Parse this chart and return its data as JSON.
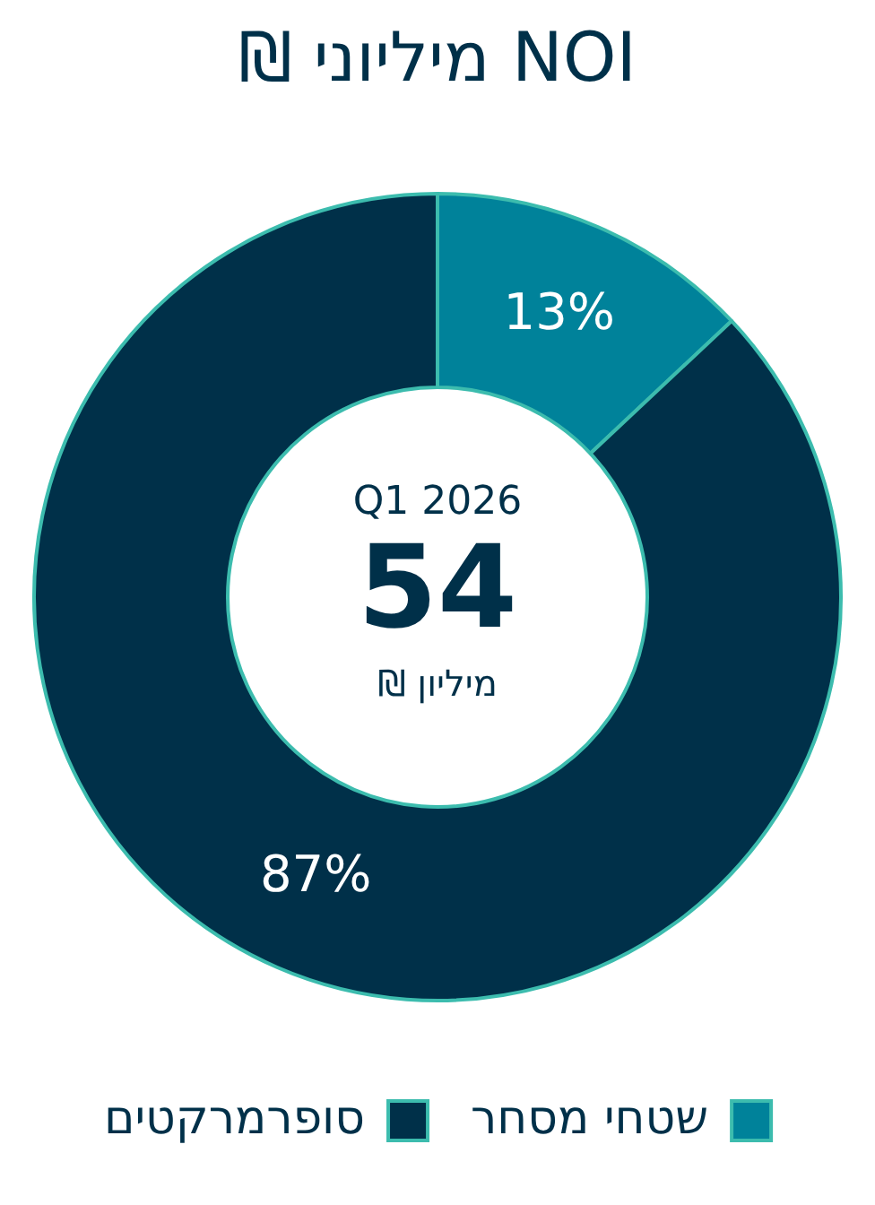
{
  "chart_data": {
    "type": "donut",
    "title": "NOI מיליוני ₪",
    "categories": [
      "שטחי מסחר",
      "סופרמרקטים"
    ],
    "values": [
      13,
      87
    ],
    "colors": [
      "#00829a",
      "#003049"
    ],
    "value_labels": [
      "13%",
      "87%"
    ],
    "annotations": [
      "Q1 2026",
      "54",
      "מיליון ₪"
    ],
    "legend": "bottom"
  }
}
